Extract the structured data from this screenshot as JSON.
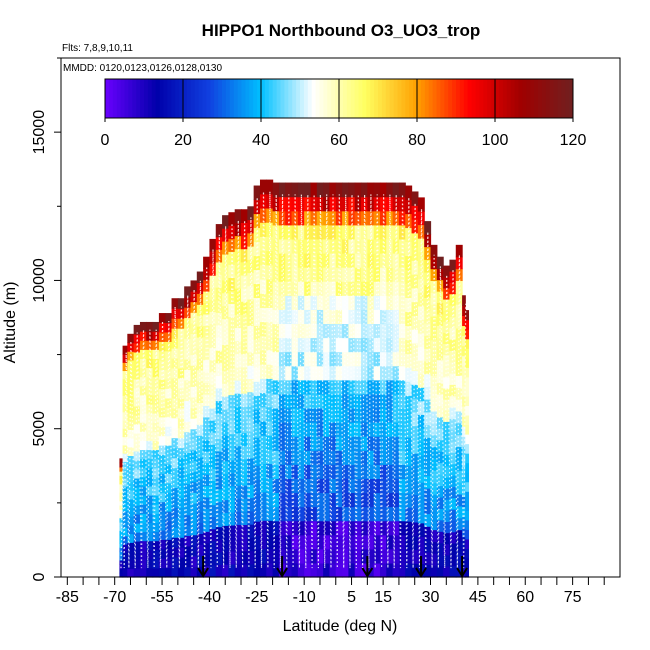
{
  "chart_data": {
    "type": "heatmap",
    "title": "HIPPO1 Northbound O3_UO3_trop",
    "flights_label": "Flts: 7,8,9,10,11",
    "dates_label": "MMDD: 0120,0123,0126,0128,0130",
    "xlabel": "Latitude (deg N)",
    "ylabel": "Altitude (m)",
    "xlim": [
      -87,
      90
    ],
    "ylim": [
      0,
      17500
    ],
    "x_ticks": [
      -85,
      -70,
      -55,
      -40,
      -25,
      -10,
      5,
      15,
      30,
      45,
      60,
      75
    ],
    "y_ticks": [
      0,
      5000,
      10000,
      15000
    ],
    "colorbar": {
      "ticks": [
        0,
        20,
        40,
        60,
        80,
        100,
        120
      ],
      "range": [
        0,
        120
      ],
      "colors": [
        "#6a00ff",
        "#0000aa",
        "#1040e0",
        "#00c0ff",
        "#ffffff",
        "#ffff60",
        "#ffa000",
        "#ff0000",
        "#a00000",
        "#702020"
      ]
    },
    "arrows_latitude": [
      -42,
      -17,
      10,
      27,
      40
    ],
    "columns": [
      {
        "lat": -68.5,
        "top": 4000
      },
      {
        "lat": -67.5,
        "top": 7800
      },
      {
        "lat": -66,
        "top": 8200
      },
      {
        "lat": -64,
        "top": 8500
      },
      {
        "lat": -62,
        "top": 8600
      },
      {
        "lat": -60,
        "top": 8600
      },
      {
        "lat": -58,
        "top": 8600
      },
      {
        "lat": -56,
        "top": 8900
      },
      {
        "lat": -54,
        "top": 8900
      },
      {
        "lat": -52,
        "top": 9400
      },
      {
        "lat": -50,
        "top": 9400
      },
      {
        "lat": -48,
        "top": 9800
      },
      {
        "lat": -46,
        "top": 10000
      },
      {
        "lat": -44,
        "top": 10300
      },
      {
        "lat": -42,
        "top": 10800
      },
      {
        "lat": -40,
        "top": 11400
      },
      {
        "lat": -38,
        "top": 11900
      },
      {
        "lat": -36,
        "top": 12200
      },
      {
        "lat": -34,
        "top": 12300
      },
      {
        "lat": -32,
        "top": 12400
      },
      {
        "lat": -30,
        "top": 12400
      },
      {
        "lat": -28,
        "top": 12500
      },
      {
        "lat": -26,
        "top": 13200
      },
      {
        "lat": -24,
        "top": 13400
      },
      {
        "lat": -22,
        "top": 13400
      },
      {
        "lat": -20,
        "top": 13300
      },
      {
        "lat": -18,
        "top": 13300
      },
      {
        "lat": -16,
        "top": 13300
      },
      {
        "lat": -14,
        "top": 13300
      },
      {
        "lat": -12,
        "top": 13300
      },
      {
        "lat": -10,
        "top": 13300
      },
      {
        "lat": -8,
        "top": 13300
      },
      {
        "lat": -6,
        "top": 13300
      },
      {
        "lat": -4,
        "top": 13300
      },
      {
        "lat": -2,
        "top": 13300
      },
      {
        "lat": 0,
        "top": 13300
      },
      {
        "lat": 2,
        "top": 13300
      },
      {
        "lat": 4,
        "top": 13300
      },
      {
        "lat": 6,
        "top": 13300
      },
      {
        "lat": 8,
        "top": 13300
      },
      {
        "lat": 10,
        "top": 13300
      },
      {
        "lat": 12,
        "top": 13300
      },
      {
        "lat": 14,
        "top": 13300
      },
      {
        "lat": 16,
        "top": 13300
      },
      {
        "lat": 18,
        "top": 13300
      },
      {
        "lat": 20,
        "top": 13300
      },
      {
        "lat": 22,
        "top": 13200
      },
      {
        "lat": 24,
        "top": 13000
      },
      {
        "lat": 26,
        "top": 12800
      },
      {
        "lat": 28,
        "top": 12000
      },
      {
        "lat": 30,
        "top": 11200
      },
      {
        "lat": 32,
        "top": 10800
      },
      {
        "lat": 34,
        "top": 10500
      },
      {
        "lat": 36,
        "top": 10700
      },
      {
        "lat": 38,
        "top": 11200
      },
      {
        "lat": 40,
        "top": 9500
      },
      {
        "lat": 41,
        "top": 9000
      }
    ],
    "cell_values_description_free": true
  }
}
